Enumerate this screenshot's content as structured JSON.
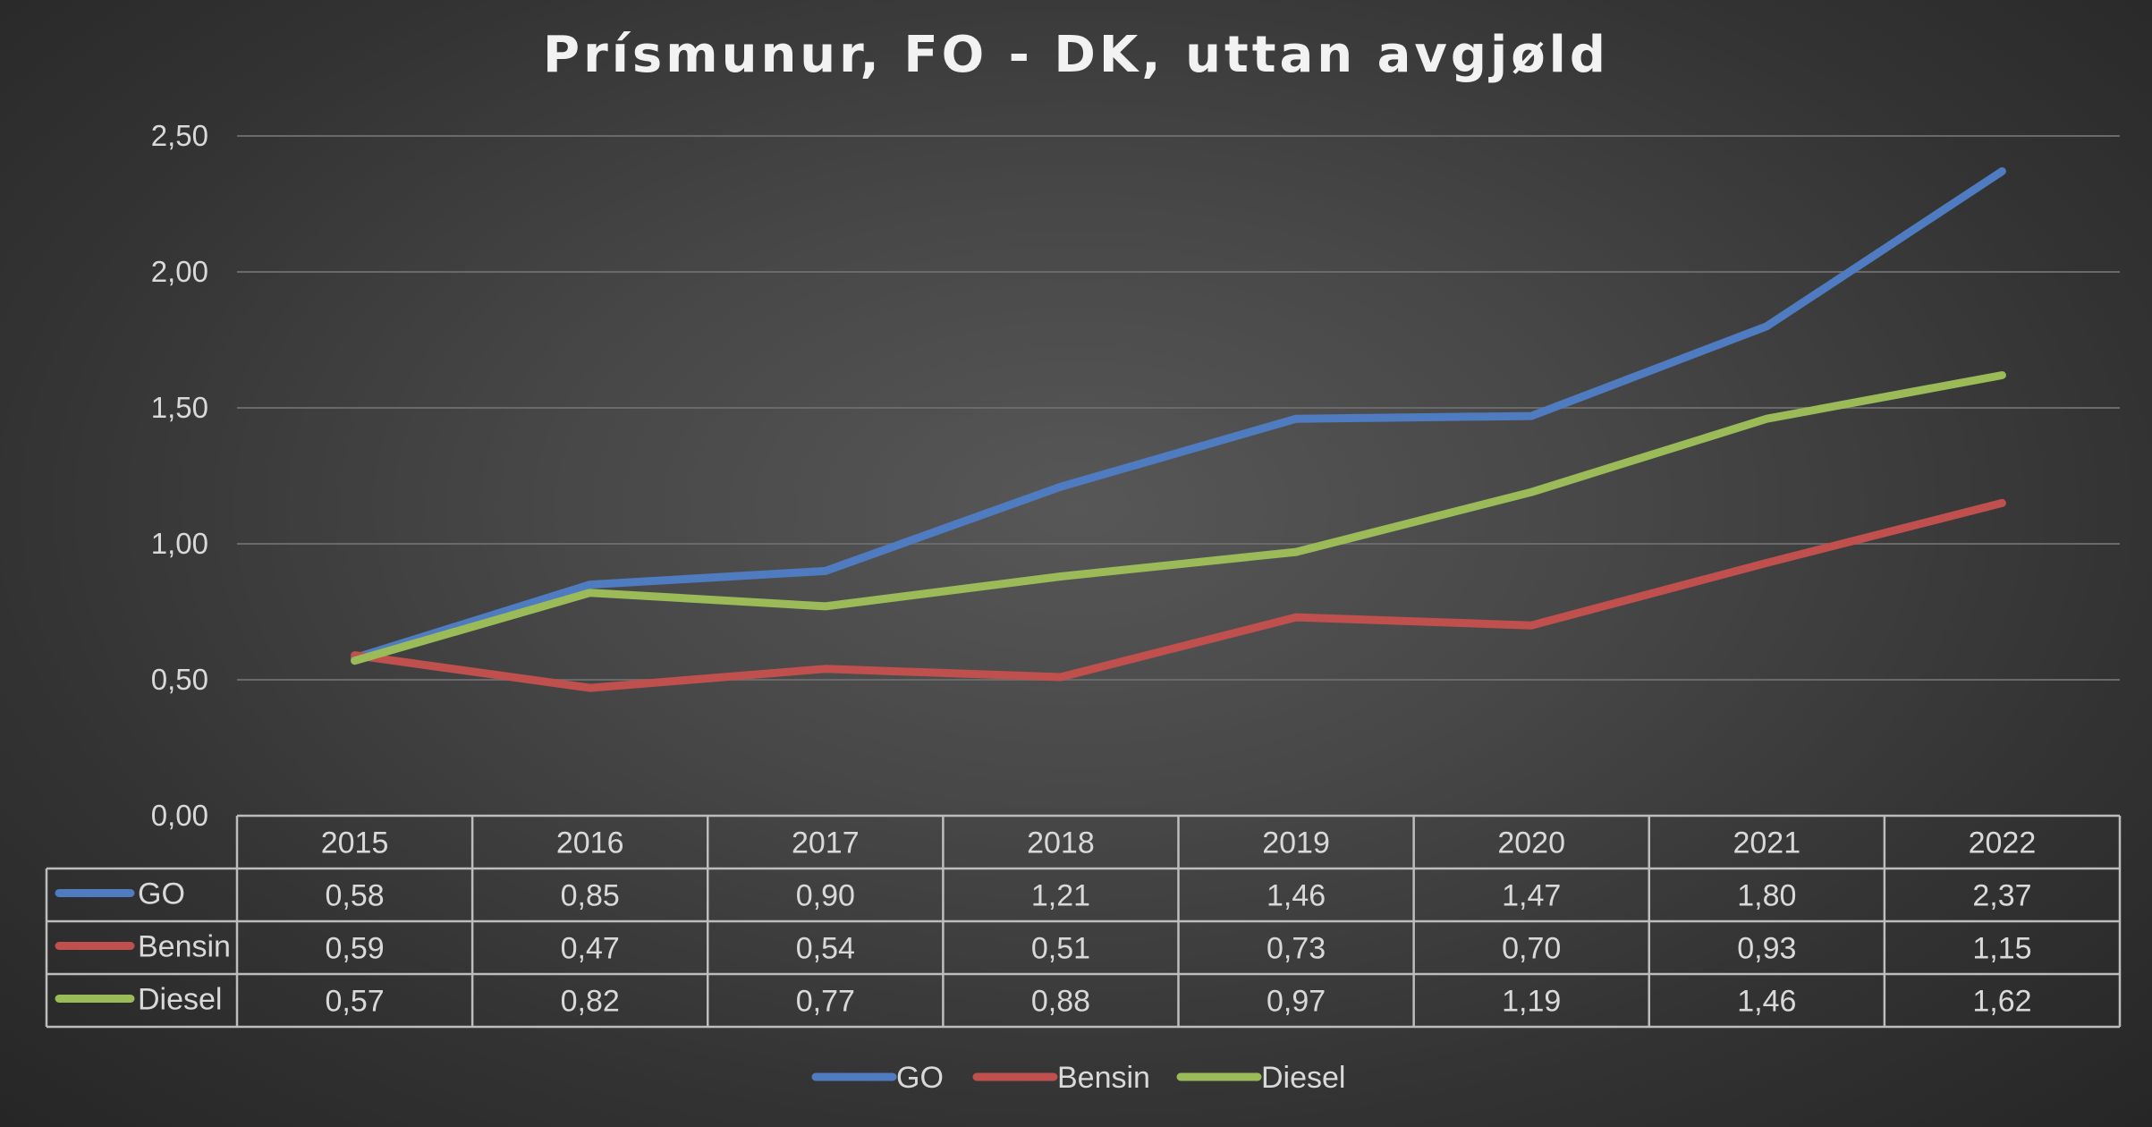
{
  "chart_data": {
    "type": "line",
    "title": "Prísmunur, FO - DK, uttan avgjøld",
    "categories": [
      "2015",
      "2016",
      "2017",
      "2018",
      "2019",
      "2020",
      "2021",
      "2022"
    ],
    "ylim": [
      0,
      2.5
    ],
    "yticks": [
      "0,00",
      "0,50",
      "1,00",
      "1,50",
      "2,00",
      "2,50"
    ],
    "grid": true,
    "legend": "bottom",
    "data_table": true,
    "series": [
      {
        "name": "GO",
        "color": "#4f7cc1",
        "values": [
          0.58,
          0.85,
          0.9,
          1.21,
          1.46,
          1.47,
          1.8,
          2.37
        ],
        "labels": [
          "0,58",
          "0,85",
          "0,90",
          "1,21",
          "1,46",
          "1,47",
          "1,80",
          "2,37"
        ]
      },
      {
        "name": "Bensin",
        "color": "#c0504d",
        "values": [
          0.59,
          0.47,
          0.54,
          0.51,
          0.73,
          0.7,
          0.93,
          1.15
        ],
        "labels": [
          "0,59",
          "0,47",
          "0,54",
          "0,51",
          "0,73",
          "0,70",
          "0,93",
          "1,15"
        ]
      },
      {
        "name": "Diesel",
        "color": "#9bbb59",
        "values": [
          0.57,
          0.82,
          0.77,
          0.88,
          0.97,
          1.19,
          1.46,
          1.62
        ],
        "labels": [
          "0,57",
          "0,82",
          "0,77",
          "0,88",
          "0,97",
          "1,19",
          "1,46",
          "1,62"
        ]
      }
    ]
  }
}
